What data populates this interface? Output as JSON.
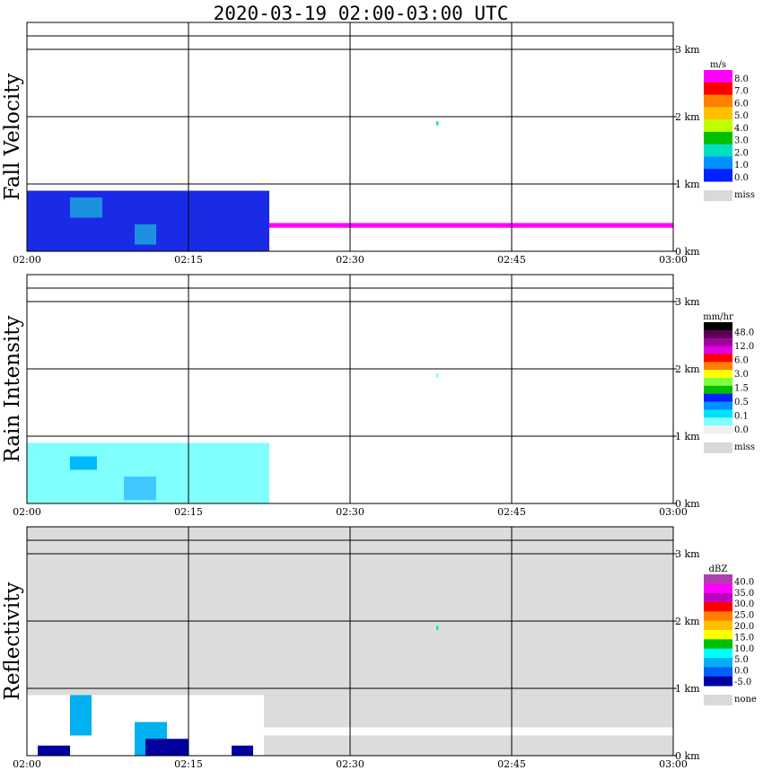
{
  "title": "2020-03-19   02:00-03:00 UTC",
  "chart_data": [
    {
      "type": "heatmap",
      "panel_label": "Fall Velocity",
      "background_color": "#ffffff",
      "x_ticks": [
        "02:00",
        "02:15",
        "02:30",
        "02:45",
        "03:00"
      ],
      "y_ticks": [
        "0 km",
        "1 km",
        "2 km",
        "3 km"
      ],
      "ylim_km": [
        0,
        3.2
      ],
      "grid": true,
      "legend": {
        "unit": "m/s",
        "colors": [
          "#ff00ff",
          "#ff0000",
          "#ff8000",
          "#ffc000",
          "#c0ff00",
          "#00c000",
          "#00e0c0",
          "#0090ff",
          "#0020ff"
        ],
        "labels": [
          "8.0",
          "7.0",
          "6.0",
          "5.0",
          "4.0",
          "3.0",
          "2.0",
          "1.0",
          "0.0"
        ],
        "miss_label": "miss",
        "miss_color": "#d9d9d9"
      },
      "regions": [
        {
          "t0": 0.0,
          "t1": 22.5,
          "z0": 0.0,
          "z1": 0.9,
          "color": "#1a2be6"
        },
        {
          "t0": 4.0,
          "t1": 7.0,
          "z0": 0.5,
          "z1": 0.8,
          "color": "#1e90e0"
        },
        {
          "t0": 10.0,
          "t1": 12.0,
          "z0": 0.1,
          "z1": 0.4,
          "color": "#1e90e0"
        },
        {
          "t0": 22.5,
          "t1": 60.0,
          "z0": 0.35,
          "z1": 0.42,
          "color": "#ff00ff"
        },
        {
          "t0": 38.0,
          "t1": 38.2,
          "z0": 1.87,
          "z1": 1.93,
          "color": "#00e0c0"
        }
      ]
    },
    {
      "type": "heatmap",
      "panel_label": "Rain Intensity",
      "background_color": "#ffffff",
      "x_ticks": [
        "02:00",
        "02:15",
        "02:30",
        "02:45",
        "03:00"
      ],
      "y_ticks": [
        "0 km",
        "1 km",
        "2 km",
        "3 km"
      ],
      "ylim_km": [
        0,
        3.2
      ],
      "grid": true,
      "legend": {
        "unit": "mm/hr",
        "colors": [
          "#000000",
          "#5a0050",
          "#a000a0",
          "#e000e0",
          "#ff0000",
          "#ff8000",
          "#ffff00",
          "#80ff40",
          "#00c000",
          "#0020ff",
          "#0090ff",
          "#00e0ff",
          "#80ffff",
          "#f0f0f0"
        ],
        "labels": [
          "48.0",
          "12.0",
          "6.0",
          "3.0",
          "1.5",
          "0.5",
          "0.1",
          "0.0"
        ],
        "miss_label": "miss",
        "miss_color": "#d9d9d9"
      },
      "regions": [
        {
          "t0": 0.0,
          "t1": 22.5,
          "z0": 0.0,
          "z1": 0.9,
          "color": "#80ffff"
        },
        {
          "t0": 4.0,
          "t1": 6.5,
          "z0": 0.5,
          "z1": 0.7,
          "color": "#00b8ff"
        },
        {
          "t0": 9.0,
          "t1": 12.0,
          "z0": 0.05,
          "z1": 0.4,
          "color": "#40c8ff"
        },
        {
          "t0": 38.0,
          "t1": 38.2,
          "z0": 1.87,
          "z1": 1.93,
          "color": "#80ffff"
        }
      ]
    },
    {
      "type": "heatmap",
      "panel_label": "Reflectivity",
      "background_color": "#dcdcdc",
      "x_ticks": [
        "02:00",
        "02:15",
        "02:30",
        "02:45",
        "03:00"
      ],
      "y_ticks": [
        "0 km",
        "1 km",
        "2 km",
        "3 km"
      ],
      "ylim_km": [
        0,
        3.2
      ],
      "grid": true,
      "legend": {
        "unit": "dBZ",
        "colors": [
          "#b040b0",
          "#ff00ff",
          "#c000c0",
          "#ff0000",
          "#ff8000",
          "#ffc000",
          "#ffff00",
          "#00c000",
          "#00ffff",
          "#00b0f0",
          "#0060ff",
          "#0000a0"
        ],
        "labels": [
          "40.0",
          "35.0",
          "30.0",
          "25.0",
          "20.0",
          "15.0",
          "10.0",
          "5.0",
          "0.0",
          "-5.0"
        ],
        "miss_label": "none",
        "miss_color": "#d9d9d9"
      },
      "regions": [
        {
          "t0": 0.0,
          "t1": 60.0,
          "z0": 0.3,
          "z1": 0.42,
          "color": "#ffffff"
        },
        {
          "t0": 0.0,
          "t1": 22.0,
          "z0": 0.0,
          "z1": 0.9,
          "color": "#ffffff"
        },
        {
          "t0": 4.0,
          "t1": 6.0,
          "z0": 0.3,
          "z1": 0.9,
          "color": "#00b0f0"
        },
        {
          "t0": 10.0,
          "t1": 13.0,
          "z0": 0.0,
          "z1": 0.5,
          "color": "#00b0f0"
        },
        {
          "t0": 1.0,
          "t1": 4.0,
          "z0": 0.0,
          "z1": 0.15,
          "color": "#0000a0"
        },
        {
          "t0": 11.0,
          "t1": 15.0,
          "z0": 0.0,
          "z1": 0.25,
          "color": "#0000a0"
        },
        {
          "t0": 19.0,
          "t1": 21.0,
          "z0": 0.0,
          "z1": 0.15,
          "color": "#0000a0"
        },
        {
          "t0": 38.0,
          "t1": 38.2,
          "z0": 1.87,
          "z1": 1.93,
          "color": "#00e0c0"
        }
      ]
    }
  ]
}
